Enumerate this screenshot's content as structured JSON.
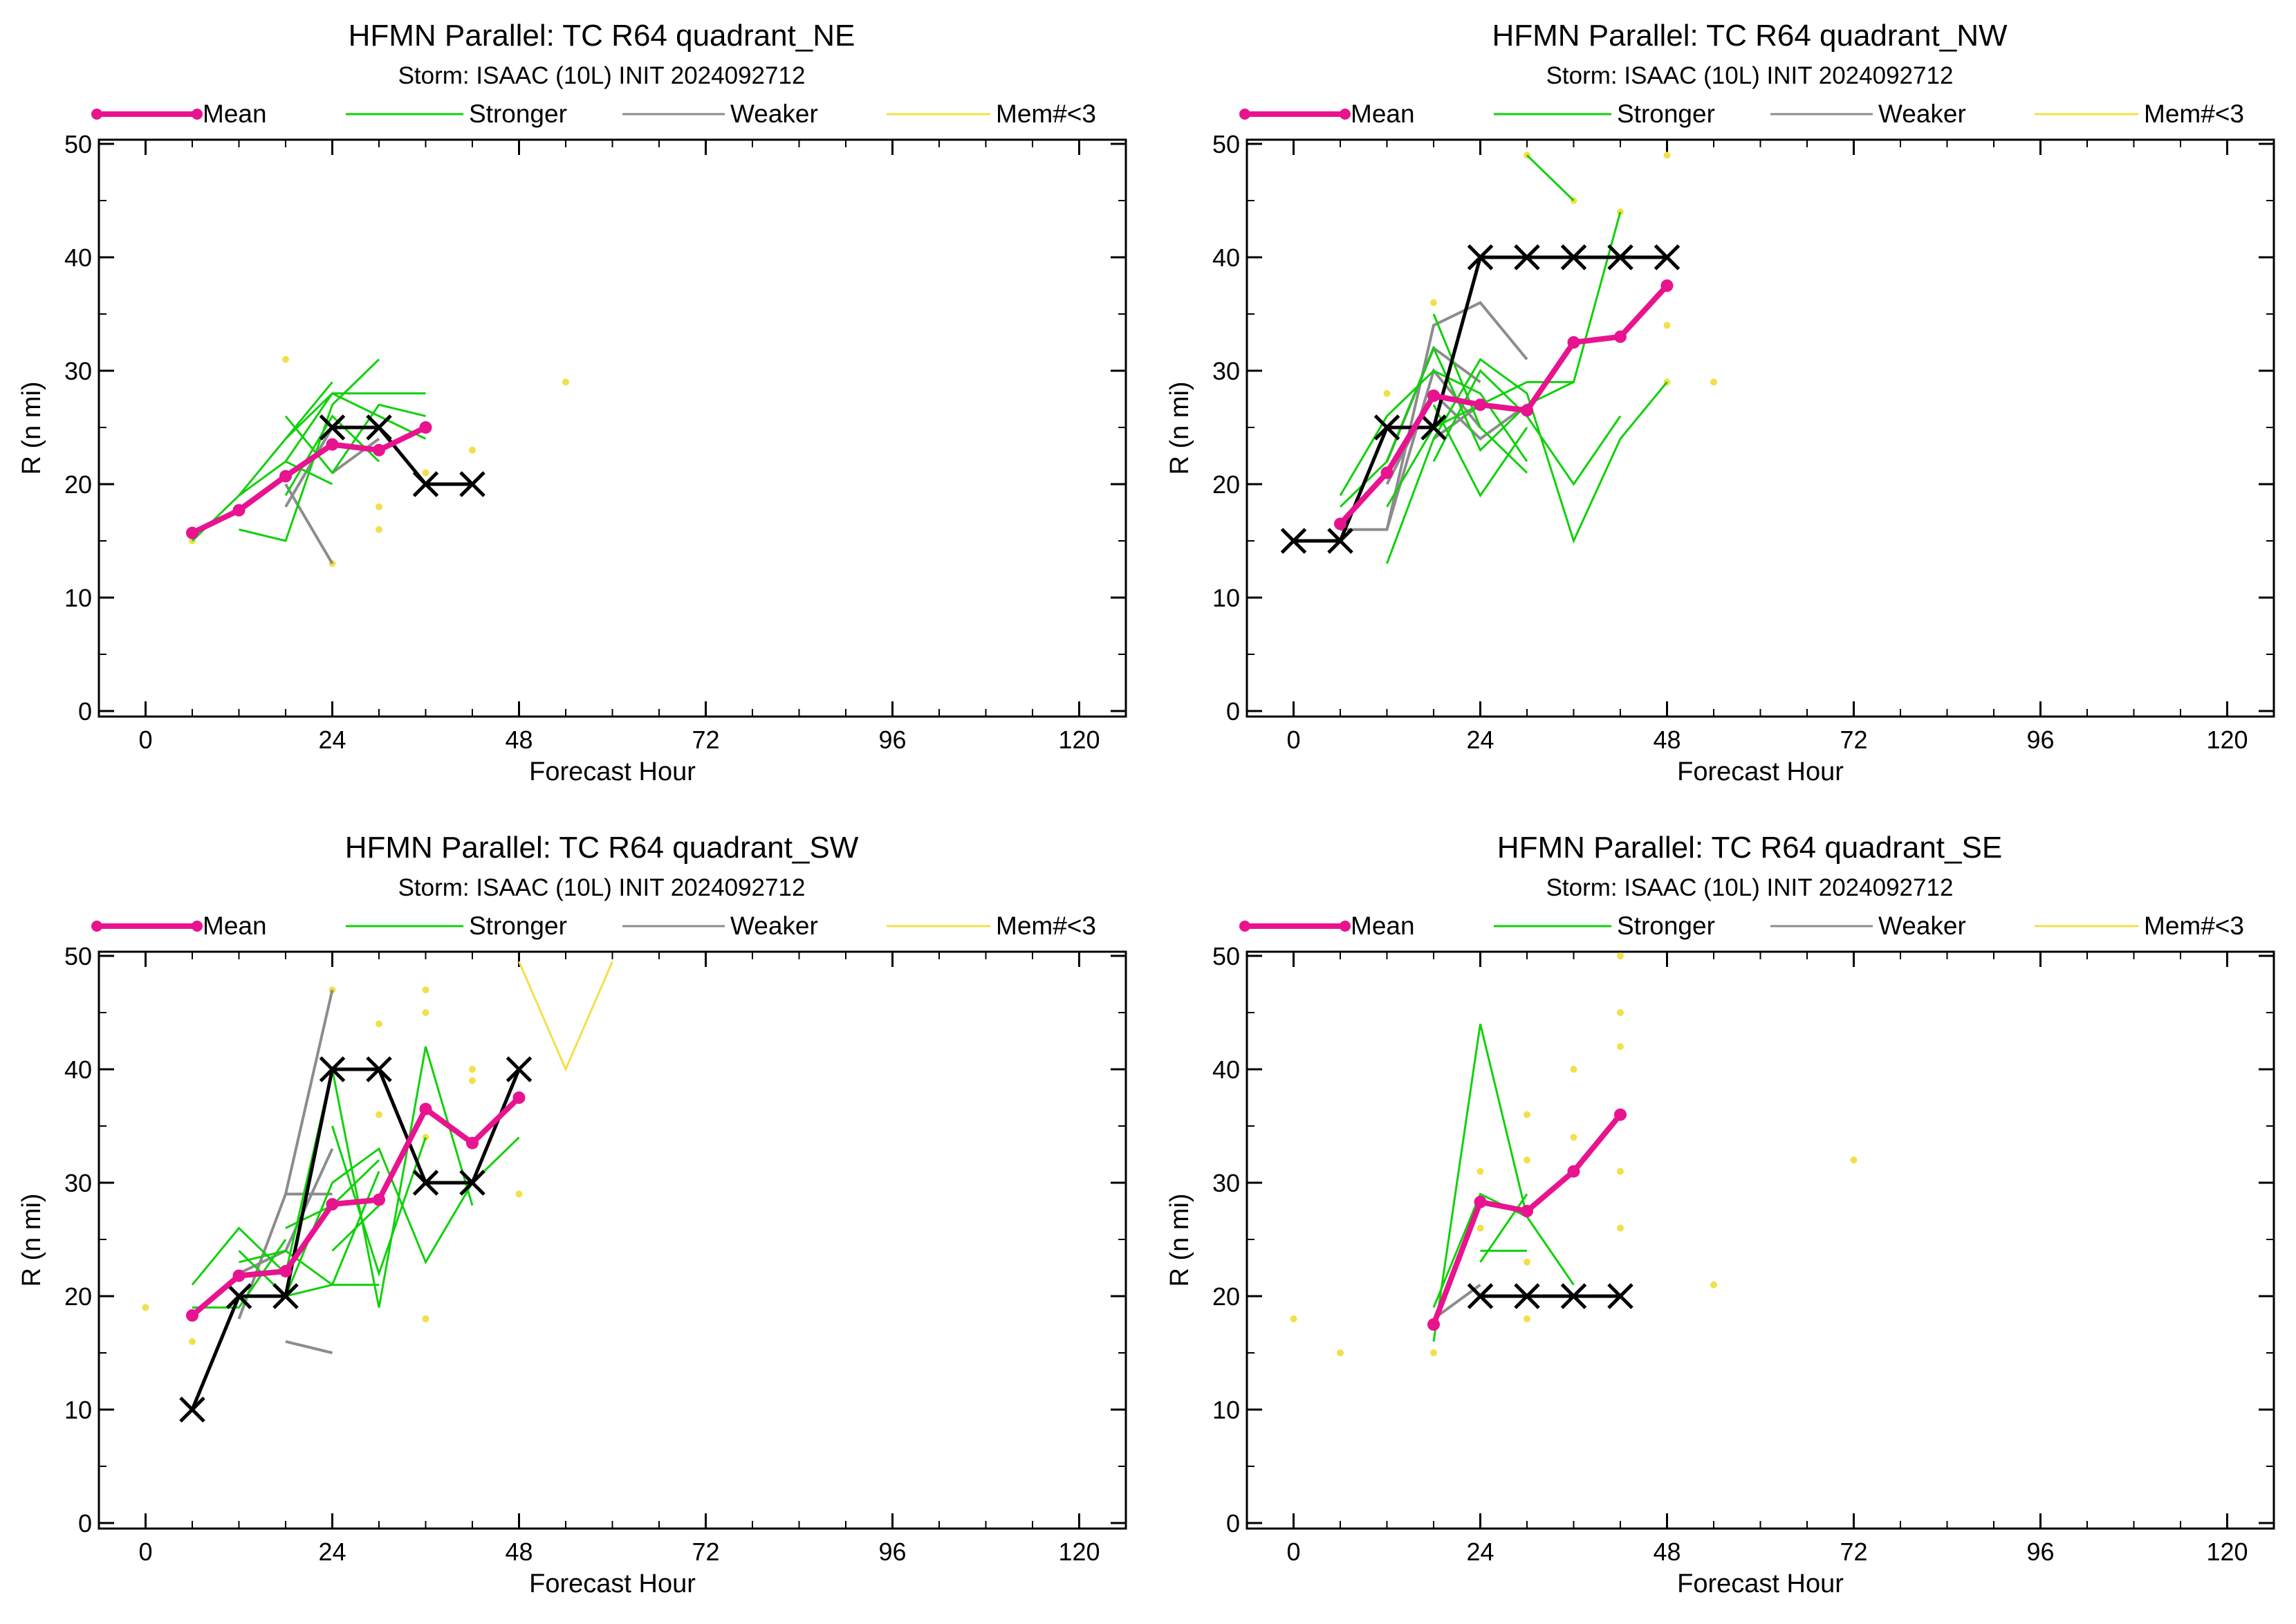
{
  "chart_data": [
    {
      "type": "line",
      "title": "HFMN Parallel: TC  R64 quadrant_NE",
      "subtitle": "Storm: ISAAC (10L) INIT 2024092712",
      "xlabel": "Forecast Hour",
      "ylabel": "R (n mi)",
      "xlim": [
        -6,
        126
      ],
      "ylim": [
        0,
        50
      ],
      "xticks": [
        0,
        24,
        48,
        72,
        96,
        120
      ],
      "yticks": [
        0,
        10,
        20,
        30,
        40,
        50
      ],
      "legend": [
        "Mean",
        "Stronger",
        "Weaker",
        "Mem#<3"
      ],
      "legend_placement": "top",
      "colors": {
        "mean": "#e8138f",
        "stronger": "#10d10a",
        "weaker": "#8c8c8c",
        "few_members": "#f2e04a",
        "observed": "#000000"
      },
      "observed": {
        "x": [
          24,
          30,
          36,
          42
        ],
        "y": [
          25,
          25,
          20,
          20
        ]
      },
      "mean": {
        "x": [
          6,
          12,
          18,
          24,
          30,
          36
        ],
        "y": [
          15.7,
          17.7,
          20.7,
          23.5,
          23.0,
          25.0
        ]
      },
      "stronger": [
        {
          "x": [
            6,
            12,
            18,
            24
          ],
          "y": [
            15,
            19,
            24,
            29
          ]
        },
        {
          "x": [
            12,
            18,
            24,
            30
          ],
          "y": [
            16,
            15,
            27,
            31
          ]
        },
        {
          "x": [
            12,
            18,
            24,
            30,
            36
          ],
          "y": [
            19,
            22,
            28,
            28,
            28
          ]
        },
        {
          "x": [
            18,
            24,
            30,
            36
          ],
          "y": [
            26,
            21,
            27,
            26
          ]
        },
        {
          "x": [
            18,
            24,
            30
          ],
          "y": [
            19,
            26,
            22
          ]
        },
        {
          "x": [
            18,
            24,
            30,
            36
          ],
          "y": [
            24,
            28,
            26,
            24
          ]
        },
        {
          "x": [
            18,
            24
          ],
          "y": [
            22,
            20
          ]
        }
      ],
      "weaker": [
        {
          "x": [
            18,
            24
          ],
          "y": [
            18,
            25
          ]
        },
        {
          "x": [
            18,
            24
          ],
          "y": [
            20,
            13
          ]
        },
        {
          "x": [
            24,
            30
          ],
          "y": [
            21,
            24
          ]
        }
      ],
      "few_members_points": {
        "x": [
          6,
          18,
          24,
          30,
          30,
          36,
          42,
          54
        ],
        "y": [
          15,
          31,
          13,
          16,
          18,
          21,
          23,
          29
        ]
      }
    },
    {
      "type": "line",
      "title": "HFMN Parallel: TC  R64 quadrant_NW",
      "subtitle": "Storm: ISAAC (10L) INIT 2024092712",
      "xlabel": "Forecast Hour",
      "ylabel": "R (n mi)",
      "xlim": [
        -6,
        126
      ],
      "ylim": [
        0,
        50
      ],
      "xticks": [
        0,
        24,
        48,
        72,
        96,
        120
      ],
      "yticks": [
        0,
        10,
        20,
        30,
        40,
        50
      ],
      "legend": [
        "Mean",
        "Stronger",
        "Weaker",
        "Mem#<3"
      ],
      "legend_placement": "top",
      "colors": {
        "mean": "#e8138f",
        "stronger": "#10d10a",
        "weaker": "#8c8c8c",
        "few_members": "#f2e04a",
        "observed": "#000000"
      },
      "observed": {
        "x": [
          0,
          6,
          12,
          18,
          24,
          30,
          36,
          42,
          48
        ],
        "y": [
          15,
          15,
          25,
          25,
          40,
          40,
          40,
          40,
          40
        ]
      },
      "mean": {
        "x": [
          6,
          12,
          18,
          24,
          30,
          36,
          42,
          48
        ],
        "y": [
          16.5,
          21.0,
          27.8,
          27.0,
          26.5,
          32.5,
          33.0,
          37.5
        ]
      },
      "stronger": [
        {
          "x": [
            6,
            12,
            18,
            24,
            30
          ],
          "y": [
            19,
            26,
            30,
            28,
            22
          ]
        },
        {
          "x": [
            12,
            18,
            24,
            30,
            36,
            42,
            48
          ],
          "y": [
            13,
            24,
            31,
            28,
            15,
            24,
            29
          ]
        },
        {
          "x": [
            6,
            12,
            18,
            24,
            30,
            36
          ],
          "y": [
            18,
            22,
            32,
            23,
            27,
            29
          ]
        },
        {
          "x": [
            12,
            18,
            24,
            30,
            36,
            42
          ],
          "y": [
            18,
            25,
            27,
            29,
            29,
            44
          ]
        },
        {
          "x": [
            18,
            24,
            30,
            36,
            42
          ],
          "y": [
            22,
            30,
            26,
            20,
            26
          ]
        },
        {
          "x": [
            18,
            24,
            30
          ],
          "y": [
            27,
            19,
            25
          ]
        },
        {
          "x": [
            30,
            36
          ],
          "y": [
            49,
            45
          ]
        },
        {
          "x": [
            18,
            24,
            30
          ],
          "y": [
            35,
            25,
            21
          ]
        }
      ],
      "weaker": [
        {
          "x": [
            6,
            12,
            18,
            24,
            30
          ],
          "y": [
            16,
            16,
            34,
            36,
            31
          ]
        },
        {
          "x": [
            12,
            18,
            24
          ],
          "y": [
            16,
            30,
            25
          ]
        },
        {
          "x": [
            12,
            18,
            24,
            30
          ],
          "y": [
            20,
            28,
            24,
            27
          ]
        },
        {
          "x": [
            12,
            18,
            24
          ],
          "y": [
            22,
            32,
            29
          ]
        },
        {
          "x": [
            18,
            24
          ],
          "y": [
            24,
            27
          ]
        }
      ],
      "few_members_points": {
        "x": [
          12,
          18,
          30,
          36,
          42,
          48,
          48,
          48,
          54
        ],
        "y": [
          28,
          36,
          49,
          45,
          44,
          49,
          34,
          29,
          29
        ]
      }
    },
    {
      "type": "line",
      "title": "HFMN Parallel: TC  R64 quadrant_SW",
      "subtitle": "Storm: ISAAC (10L) INIT 2024092712",
      "xlabel": "Forecast Hour",
      "ylabel": "R (n mi)",
      "xlim": [
        -6,
        126
      ],
      "ylim": [
        0,
        50
      ],
      "xticks": [
        0,
        24,
        48,
        72,
        96,
        120
      ],
      "yticks": [
        0,
        10,
        20,
        30,
        40,
        50
      ],
      "legend": [
        "Mean",
        "Stronger",
        "Weaker",
        "Mem#<3"
      ],
      "legend_placement": "top",
      "colors": {
        "mean": "#e8138f",
        "stronger": "#10d10a",
        "weaker": "#8c8c8c",
        "few_members": "#f2e04a",
        "observed": "#000000"
      },
      "observed": {
        "x": [
          6,
          12,
          18,
          24,
          30,
          36,
          42,
          48
        ],
        "y": [
          10,
          20,
          20,
          40,
          40,
          30,
          30,
          40
        ]
      },
      "mean": {
        "x": [
          6,
          12,
          18,
          24,
          30,
          36,
          42,
          48
        ],
        "y": [
          18.3,
          21.8,
          22.2,
          28.1,
          28.5,
          36.5,
          33.5,
          37.5
        ]
      },
      "stronger": [
        {
          "x": [
            6,
            12,
            18,
            24,
            30,
            36,
            42
          ],
          "y": [
            21,
            26,
            22,
            40,
            19,
            42,
            28
          ]
        },
        {
          "x": [
            12,
            18,
            24,
            30,
            36,
            42,
            48
          ],
          "y": [
            24,
            20,
            30,
            33,
            23,
            30,
            34
          ]
        },
        {
          "x": [
            12,
            18,
            24,
            30
          ],
          "y": [
            23,
            24,
            21,
            31
          ]
        },
        {
          "x": [
            18,
            24,
            30
          ],
          "y": [
            26,
            28,
            32
          ]
        },
        {
          "x": [
            18,
            24,
            30
          ],
          "y": [
            20,
            21,
            21
          ]
        },
        {
          "x": [
            24,
            30,
            36
          ],
          "y": [
            35,
            22,
            34
          ]
        },
        {
          "x": [
            24,
            30
          ],
          "y": [
            24,
            28
          ]
        },
        {
          "x": [
            6,
            12,
            18
          ],
          "y": [
            19,
            19,
            25
          ]
        }
      ],
      "weaker": [
        {
          "x": [
            18,
            24
          ],
          "y": [
            29,
            47
          ]
        },
        {
          "x": [
            12,
            18,
            24
          ],
          "y": [
            18,
            29,
            29
          ]
        },
        {
          "x": [
            18,
            24
          ],
          "y": [
            16,
            15
          ]
        },
        {
          "x": [
            12,
            18,
            24
          ],
          "y": [
            22,
            24,
            33
          ]
        }
      ],
      "few_members_line": {
        "x": [
          48,
          54,
          60
        ],
        "y": [
          49.5,
          40,
          49.5
        ]
      },
      "few_members_points": {
        "x": [
          0,
          6,
          24,
          30,
          30,
          36,
          36,
          36,
          42,
          42,
          48,
          36
        ],
        "y": [
          19,
          16,
          47,
          44,
          36,
          47,
          45,
          18,
          40,
          39,
          29,
          34
        ]
      }
    },
    {
      "type": "line",
      "title": "HFMN Parallel: TC  R64 quadrant_SE",
      "subtitle": "Storm: ISAAC (10L) INIT 2024092712",
      "xlabel": "Forecast Hour",
      "ylabel": "R (n mi)",
      "xlim": [
        -6,
        126
      ],
      "ylim": [
        0,
        50
      ],
      "xticks": [
        0,
        24,
        48,
        72,
        96,
        120
      ],
      "yticks": [
        0,
        10,
        20,
        30,
        40,
        50
      ],
      "legend": [
        "Mean",
        "Stronger",
        "Weaker",
        "Mem#<3"
      ],
      "legend_placement": "top",
      "colors": {
        "mean": "#e8138f",
        "stronger": "#10d10a",
        "weaker": "#8c8c8c",
        "few_members": "#f2e04a",
        "observed": "#000000"
      },
      "observed": {
        "x": [
          24,
          30,
          36,
          42
        ],
        "y": [
          20,
          20,
          20,
          20
        ]
      },
      "mean": {
        "x": [
          18,
          24,
          30,
          36,
          42
        ],
        "y": [
          17.5,
          28.3,
          27.5,
          31.0,
          36.0
        ]
      },
      "stronger": [
        {
          "x": [
            18,
            24,
            30,
            36
          ],
          "y": [
            16,
            44,
            27,
            21
          ]
        },
        {
          "x": [
            18,
            24,
            30
          ],
          "y": [
            19,
            29,
            27
          ]
        },
        {
          "x": [
            24,
            30
          ],
          "y": [
            23,
            29
          ]
        },
        {
          "x": [
            24,
            30
          ],
          "y": [
            24,
            24
          ]
        }
      ],
      "weaker": [
        {
          "x": [
            18,
            24
          ],
          "y": [
            18,
            21
          ]
        }
      ],
      "few_members_points": {
        "x": [
          0,
          6,
          18,
          24,
          24,
          30,
          30,
          30,
          30,
          36,
          36,
          42,
          42,
          42,
          42,
          42,
          54,
          72
        ],
        "y": [
          18,
          15,
          15,
          31,
          26,
          36,
          32,
          23,
          18,
          40,
          34,
          50,
          45,
          42,
          31,
          26,
          21,
          32
        ]
      }
    }
  ]
}
